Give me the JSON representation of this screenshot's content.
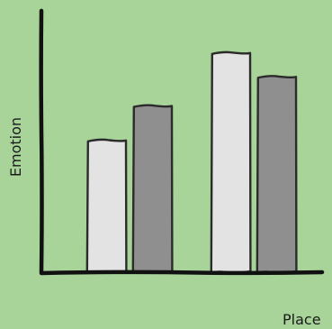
{
  "chart_data": {
    "type": "bar",
    "categories": [
      "",
      ""
    ],
    "series": [
      {
        "values": [
          5,
          8.3
        ]
      },
      {
        "values": [
          6.3,
          7.4
        ]
      }
    ],
    "xlabel": "Place",
    "ylabel": "Emotion",
    "ylim": [
      0,
      10
    ],
    "grid": false,
    "legend": "none",
    "colors": [
      "#e3e3e3",
      "#8f8f8f"
    ],
    "axis_color": "#111111",
    "bar_outline_color": "#2b2b2b",
    "background_color": "#a8d49a"
  }
}
